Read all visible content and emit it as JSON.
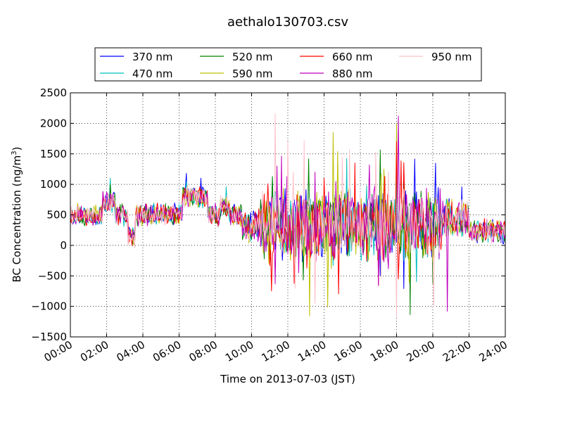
{
  "chart_data": {
    "type": "line",
    "title": "aethalo130703.csv",
    "xlabel": "Time on 2013-07-03 (JST)",
    "ylabel": "BC Concentration (ng/m",
    "ylabel_superscript": "3",
    "ylabel_suffix": ")",
    "x_tick_labels": [
      "00:00",
      "02:00",
      "04:00",
      "06:00",
      "08:00",
      "10:00",
      "12:00",
      "14:00",
      "16:00",
      "18:00",
      "20:00",
      "22:00",
      "24:00"
    ],
    "xlim_hours": [
      0,
      24
    ],
    "ylim": [
      -1500,
      2500
    ],
    "y_ticks": [
      -1500,
      -1000,
      -500,
      0,
      500,
      1000,
      1500,
      2000,
      2500
    ],
    "grid": true,
    "legend_position": "top-center, above plot",
    "series": [
      {
        "name": "370 nm",
        "color": "#0000ff",
        "seed": 11,
        "spikes": [
          [
            6.4,
            1180
          ],
          [
            7.2,
            1100
          ],
          [
            21.6,
            960
          ],
          [
            20.3,
            950
          ]
        ]
      },
      {
        "name": "470 nm",
        "color": "#00bfbf",
        "seed": 23,
        "spikes": [
          [
            2.2,
            1100
          ],
          [
            8.6,
            960
          ],
          [
            6.4,
            1050
          ],
          [
            14.5,
            -330
          ]
        ]
      },
      {
        "name": "520 nm",
        "color": "#008000",
        "seed": 37,
        "spikes": [
          [
            2.2,
            1000
          ],
          [
            18.4,
            1050
          ],
          [
            6.4,
            900
          ],
          [
            18.5,
            -200
          ]
        ]
      },
      {
        "name": "590 nm",
        "color": "#bfbf00",
        "seed": 41,
        "spikes": [
          [
            14.5,
            1850
          ],
          [
            18.0,
            2000
          ],
          [
            14.4,
            -380
          ],
          [
            17.3,
            1250
          ]
        ]
      },
      {
        "name": "660 nm",
        "color": "#ff0000",
        "seed": 53,
        "spikes": [
          [
            18.0,
            1700
          ],
          [
            18.1,
            -550
          ],
          [
            14.0,
            1100
          ],
          [
            15.7,
            1350
          ],
          [
            11.0,
            -330
          ],
          [
            17.0,
            -660
          ]
        ]
      },
      {
        "name": "880 nm",
        "color": "#bf00bf",
        "seed": 67,
        "spikes": [
          [
            18.1,
            2120
          ],
          [
            20.8,
            -1080
          ],
          [
            17.0,
            -650
          ],
          [
            16.5,
            1320
          ],
          [
            12.6,
            -450
          ],
          [
            11.4,
            1300
          ]
        ]
      },
      {
        "name": "950 nm",
        "color": "#ffc0cb",
        "seed": 79,
        "spikes": [
          [
            11.3,
            2160
          ],
          [
            13.5,
            2050
          ],
          [
            15.0,
            1450
          ],
          [
            15.4,
            1570
          ],
          [
            12.0,
            1700
          ],
          [
            18.0,
            -1180
          ],
          [
            12.4,
            -700
          ],
          [
            13.5,
            -950
          ],
          [
            12.9,
            1720
          ]
        ]
      }
    ]
  }
}
